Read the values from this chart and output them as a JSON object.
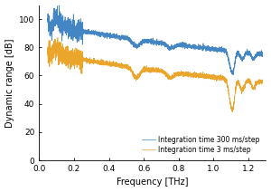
{
  "title": "",
  "xlabel": "Frequency [THz]",
  "ylabel": "Dynamic range [dB]",
  "xlim": [
    0.0,
    1.3
  ],
  "ylim": [
    0,
    110
  ],
  "yticks": [
    0,
    20,
    40,
    60,
    80,
    100
  ],
  "xticks": [
    0.0,
    0.2,
    0.4,
    0.6,
    0.8,
    1.0,
    1.2
  ],
  "blue_color": "#3a7fc1",
  "orange_color": "#e8a020",
  "legend_labels": [
    "Integration time 300 ms/step",
    "Integration time 3 ms/step"
  ],
  "background_color": "#ffffff",
  "seed": 42
}
